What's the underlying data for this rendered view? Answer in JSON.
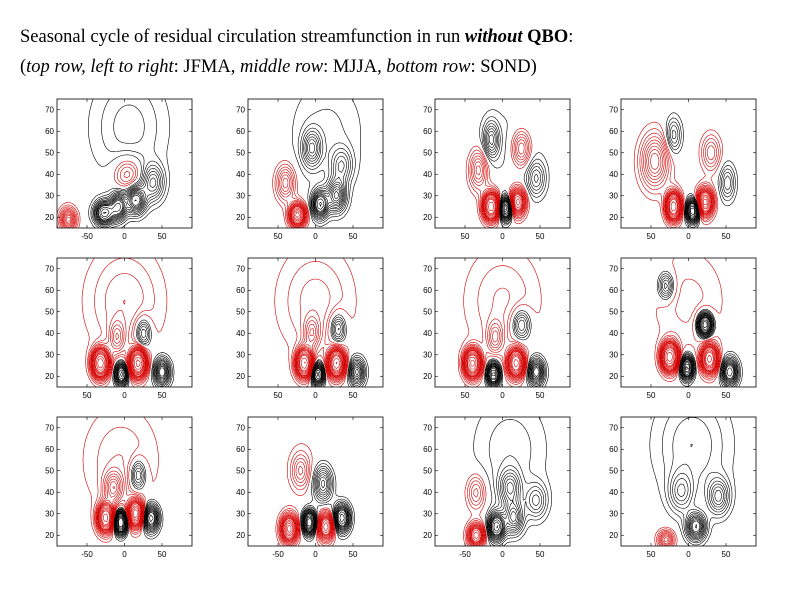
{
  "title": {
    "line1": {
      "prefix": "Seasonal cycle of residual circulation streamfunction in run ",
      "emph_italic_bold": "without",
      "space": " ",
      "emph_bold": "QBO",
      "suffix": ":"
    },
    "line2": {
      "open": "(",
      "label_top": "top row, left to right",
      "sep1": ": JFMA, ",
      "label_middle": "middle row",
      "sep2": ": MJJA, ",
      "label_bottom": "bottom row",
      "sep3": ": SOND)"
    }
  },
  "colors": {
    "positive": "#000000",
    "negative": "#d40000",
    "axis": "#000000"
  },
  "chart_data": {
    "type": "contour",
    "ylim": [
      15,
      75
    ],
    "yticks": [
      20,
      30,
      40,
      50,
      60,
      70
    ],
    "ytick_labels": [
      "20",
      "30",
      "40",
      "50",
      "60",
      "70"
    ],
    "levels": {
      "negative": [
        -0.5,
        -1,
        -1.5,
        -2,
        -2.5,
        -3,
        -3.5,
        -4,
        -4.5,
        -5,
        -5.5,
        -6,
        -7,
        -8,
        -9,
        -10,
        -12,
        -14
      ],
      "positive": [
        0.5,
        1,
        1.5,
        2,
        2.5,
        3,
        3.5,
        4,
        4.5,
        5,
        5.5,
        6,
        7,
        8,
        9,
        10,
        12,
        14
      ]
    },
    "panels": [
      {
        "row": 0,
        "col": 0,
        "xlim": [
          -90,
          90
        ],
        "xticks": [
          -50,
          0,
          50
        ],
        "xtick_labels": [
          "-50",
          "0",
          "50"
        ],
        "base": [
          1.8,
          6,
          48,
          62,
          24
        ],
        "blobs": [
          [
            -75,
            19,
            -6,
            10,
            5
          ],
          [
            -27,
            22,
            9,
            12,
            5
          ],
          [
            -8,
            25,
            7,
            10,
            6
          ],
          [
            15,
            28,
            7,
            12,
            6
          ],
          [
            4,
            40,
            -3,
            18,
            8
          ],
          [
            38,
            36,
            4,
            14,
            8
          ]
        ]
      },
      {
        "row": 0,
        "col": 1,
        "xlim": [
          -90,
          90
        ],
        "xticks": [
          -50,
          0,
          50
        ],
        "xtick_labels": [
          "50",
          "0",
          "50"
        ],
        "base": [
          1.2,
          15,
          48,
          60,
          24
        ],
        "blobs": [
          [
            -24,
            21,
            -11,
            10,
            5
          ],
          [
            -40,
            36,
            -4,
            12,
            8
          ],
          [
            6,
            26,
            8,
            10,
            6
          ],
          [
            28,
            30,
            6,
            12,
            7
          ],
          [
            -5,
            52,
            4,
            12,
            8
          ],
          [
            35,
            44,
            3,
            14,
            8
          ]
        ]
      },
      {
        "row": 0,
        "col": 2,
        "xlim": [
          -90,
          90
        ],
        "xticks": [
          -50,
          0,
          50
        ],
        "xtick_labels": [
          "50",
          "0",
          "50"
        ],
        "base": [
          0.6,
          10,
          48,
          55,
          24
        ],
        "blobs": [
          [
            -15,
            25,
            -14,
            10,
            6
          ],
          [
            4,
            24,
            11,
            8,
            5
          ],
          [
            20,
            27,
            -9,
            10,
            6
          ],
          [
            -32,
            42,
            -4,
            12,
            9
          ],
          [
            -15,
            56,
            4,
            10,
            8
          ],
          [
            25,
            52,
            -4,
            12,
            8
          ],
          [
            45,
            38,
            3,
            12,
            8
          ]
        ]
      },
      {
        "row": 0,
        "col": 3,
        "xlim": [
          -90,
          90
        ],
        "xticks": [
          -50,
          0,
          50
        ],
        "xtick_labels": [
          "50",
          "0",
          "50"
        ],
        "base": [
          0,
          0,
          48,
          60,
          24
        ],
        "blobs": [
          [
            -20,
            25,
            -14,
            9,
            6
          ],
          [
            6,
            23,
            11,
            8,
            5
          ],
          [
            22,
            27,
            -11,
            10,
            6
          ],
          [
            -45,
            46,
            -5,
            18,
            12
          ],
          [
            -20,
            58,
            3,
            10,
            8
          ],
          [
            30,
            50,
            -3,
            12,
            8
          ],
          [
            52,
            36,
            3,
            10,
            8
          ]
        ]
      },
      {
        "row": 1,
        "col": 0,
        "xlim": [
          -90,
          90
        ],
        "xticks": [
          -50,
          0,
          50
        ],
        "xtick_labels": [
          "50",
          "0",
          "50"
        ],
        "base": [
          -2,
          0,
          48,
          55,
          24
        ],
        "blobs": [
          [
            -32,
            26,
            -16,
            10,
            6
          ],
          [
            -4,
            21,
            9,
            8,
            5
          ],
          [
            18,
            26,
            -15,
            10,
            6
          ],
          [
            50,
            22,
            7,
            10,
            6
          ],
          [
            -10,
            38,
            -3,
            10,
            7
          ],
          [
            25,
            40,
            4,
            10,
            7
          ]
        ]
      },
      {
        "row": 1,
        "col": 1,
        "xlim": [
          -90,
          90
        ],
        "xticks": [
          -50,
          0,
          50
        ],
        "xtick_labels": [
          "50",
          "0",
          "50"
        ],
        "base": [
          -1.8,
          0,
          48,
          55,
          24
        ],
        "blobs": [
          [
            -15,
            26,
            -14,
            10,
            6
          ],
          [
            3,
            21,
            9,
            8,
            5
          ],
          [
            28,
            26,
            -14,
            10,
            6
          ],
          [
            55,
            22,
            6,
            10,
            6
          ],
          [
            -5,
            40,
            -3,
            10,
            7
          ],
          [
            30,
            42,
            4,
            10,
            7
          ]
        ]
      },
      {
        "row": 1,
        "col": 2,
        "xlim": [
          -90,
          90
        ],
        "xticks": [
          -50,
          0,
          50
        ],
        "xtick_labels": [
          "50",
          "0",
          "50"
        ],
        "base": [
          -1.6,
          0,
          48,
          55,
          24
        ],
        "blobs": [
          [
            -40,
            26,
            -15,
            10,
            6
          ],
          [
            -12,
            21,
            10,
            8,
            5
          ],
          [
            18,
            26,
            -13,
            10,
            6
          ],
          [
            45,
            22,
            7,
            10,
            6
          ],
          [
            -10,
            38,
            -3,
            10,
            7
          ],
          [
            25,
            44,
            4,
            12,
            7
          ]
        ]
      },
      {
        "row": 1,
        "col": 3,
        "xlim": [
          -90,
          90
        ],
        "xticks": [
          -50,
          0,
          50
        ],
        "xtick_labels": [
          "50",
          "0",
          "50"
        ],
        "base": [
          -1.2,
          0,
          48,
          55,
          24
        ],
        "blobs": [
          [
            -25,
            29,
            -16,
            10,
            6
          ],
          [
            -2,
            24,
            11,
            8,
            5
          ],
          [
            28,
            28,
            -13,
            10,
            6
          ],
          [
            55,
            22,
            8,
            10,
            6
          ],
          [
            22,
            44,
            11,
            9,
            5
          ],
          [
            -30,
            62,
            4,
            10,
            6
          ]
        ]
      },
      {
        "row": 2,
        "col": 0,
        "xlim": [
          -90,
          90
        ],
        "xticks": [
          -50,
          0,
          50
        ],
        "xtick_labels": [
          "-50",
          "0",
          "50"
        ],
        "base": [
          -1.5,
          -5,
          48,
          55,
          24
        ],
        "blobs": [
          [
            -25,
            28,
            -13,
            10,
            6
          ],
          [
            -5,
            26,
            13,
            8,
            5
          ],
          [
            15,
            30,
            -11,
            10,
            6
          ],
          [
            35,
            28,
            8,
            10,
            6
          ],
          [
            -15,
            42,
            -4,
            12,
            7
          ],
          [
            18,
            48,
            4,
            10,
            7
          ]
        ]
      },
      {
        "row": 2,
        "col": 1,
        "xlim": [
          -90,
          90
        ],
        "xticks": [
          -50,
          0,
          50
        ],
        "xtick_labels": [
          "-50",
          "0",
          "50"
        ],
        "base": [
          -0.3,
          0,
          48,
          58,
          24
        ],
        "blobs": [
          [
            -35,
            23,
            -11,
            10,
            6
          ],
          [
            -8,
            26,
            12,
            8,
            5
          ],
          [
            14,
            24,
            -9,
            10,
            6
          ],
          [
            35,
            28,
            9,
            10,
            6
          ],
          [
            10,
            44,
            5,
            12,
            8
          ],
          [
            -20,
            50,
            -3,
            12,
            8
          ]
        ]
      },
      {
        "row": 2,
        "col": 2,
        "xlim": [
          -90,
          90
        ],
        "xticks": [
          -50,
          0,
          50
        ],
        "xtick_labels": [
          "-50",
          "0",
          "50"
        ],
        "base": [
          1.4,
          10,
          48,
          60,
          24
        ],
        "blobs": [
          [
            -35,
            20,
            -9,
            10,
            5
          ],
          [
            -8,
            24,
            9,
            10,
            6
          ],
          [
            15,
            28,
            5,
            12,
            7
          ],
          [
            -35,
            40,
            -3,
            12,
            8
          ],
          [
            10,
            42,
            4,
            14,
            8
          ],
          [
            45,
            36,
            3,
            14,
            8
          ]
        ]
      },
      {
        "row": 2,
        "col": 3,
        "xlim": [
          -90,
          90
        ],
        "xticks": [
          -50,
          0,
          50
        ],
        "xtick_labels": [
          "50",
          "0",
          "50"
        ],
        "base": [
          2,
          5,
          48,
          62,
          24
        ],
        "blobs": [
          [
            -30,
            18,
            -5,
            10,
            4
          ],
          [
            10,
            24,
            7,
            12,
            6
          ],
          [
            -10,
            40,
            3,
            16,
            9
          ],
          [
            40,
            38,
            4,
            14,
            8
          ]
        ]
      }
    ]
  }
}
